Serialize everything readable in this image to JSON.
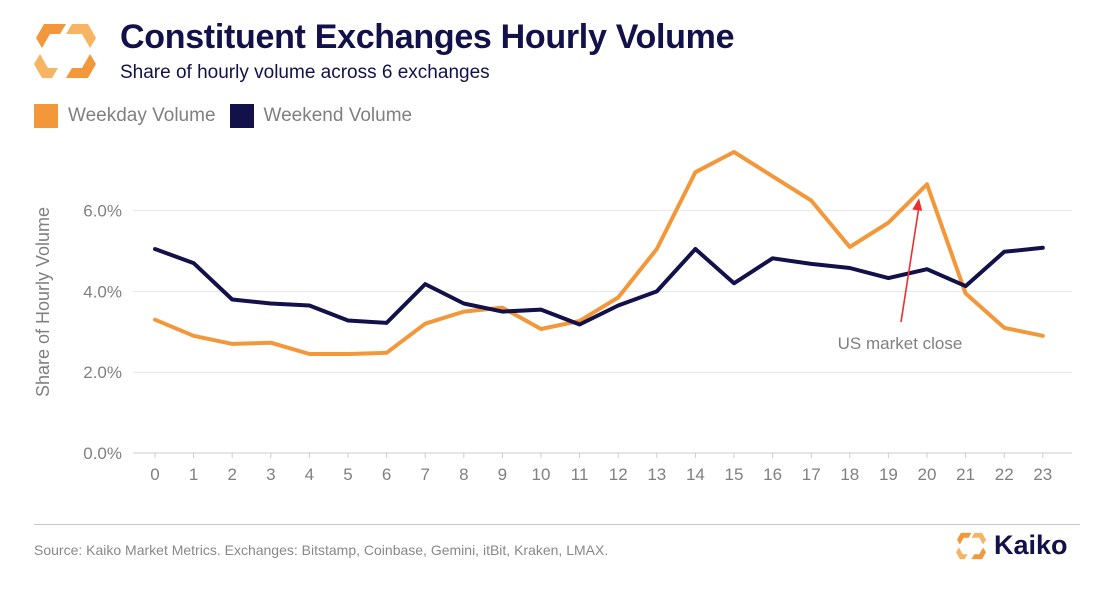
{
  "header": {
    "title": "Constituent Exchanges Hourly Volume",
    "subtitle": "Share of hourly volume across 6 exchanges"
  },
  "colors": {
    "brand_orange": "#f3983a",
    "brand_navy": "#12114a",
    "grid": "#e6e6e6",
    "annotation_arrow": "#e8312f"
  },
  "footer": {
    "source": "Source: Kaiko Market Metrics. Exchanges: Bitstamp, Coinbase, Gemini, itBit, Kraken, LMAX.",
    "brand": "Kaiko"
  },
  "chart_data": {
    "type": "line",
    "x": [
      0,
      1,
      2,
      3,
      4,
      5,
      6,
      7,
      8,
      9,
      10,
      11,
      12,
      13,
      14,
      15,
      16,
      17,
      18,
      19,
      20,
      21,
      22,
      23
    ],
    "ylabel": "Share of Hourly Volume",
    "xlabel": "",
    "ylim": [
      0,
      7.5
    ],
    "yticks": [
      "0.0%",
      "2.0%",
      "4.0%",
      "6.0%"
    ],
    "ytick_values": [
      0,
      2,
      4,
      6
    ],
    "grid": true,
    "legend_position": "top-left",
    "series": [
      {
        "name": "Weekday Volume",
        "color": "#f3983a",
        "values": [
          3.3,
          2.9,
          2.7,
          2.73,
          2.45,
          2.45,
          2.48,
          3.2,
          3.5,
          3.6,
          3.07,
          3.27,
          3.85,
          5.05,
          6.95,
          7.45,
          6.85,
          6.25,
          5.1,
          5.7,
          6.65,
          3.95,
          3.1,
          2.9
        ]
      },
      {
        "name": "Weekend Volume",
        "color": "#12114a",
        "values": [
          5.05,
          4.7,
          3.8,
          3.7,
          3.65,
          3.28,
          3.22,
          4.18,
          3.7,
          3.5,
          3.55,
          3.18,
          3.65,
          4.0,
          5.05,
          4.2,
          4.82,
          4.68,
          4.58,
          4.33,
          4.55,
          4.13,
          4.98,
          5.08
        ]
      }
    ],
    "annotations": [
      {
        "text": "US market close",
        "x": 20,
        "y": 6.65
      }
    ]
  }
}
